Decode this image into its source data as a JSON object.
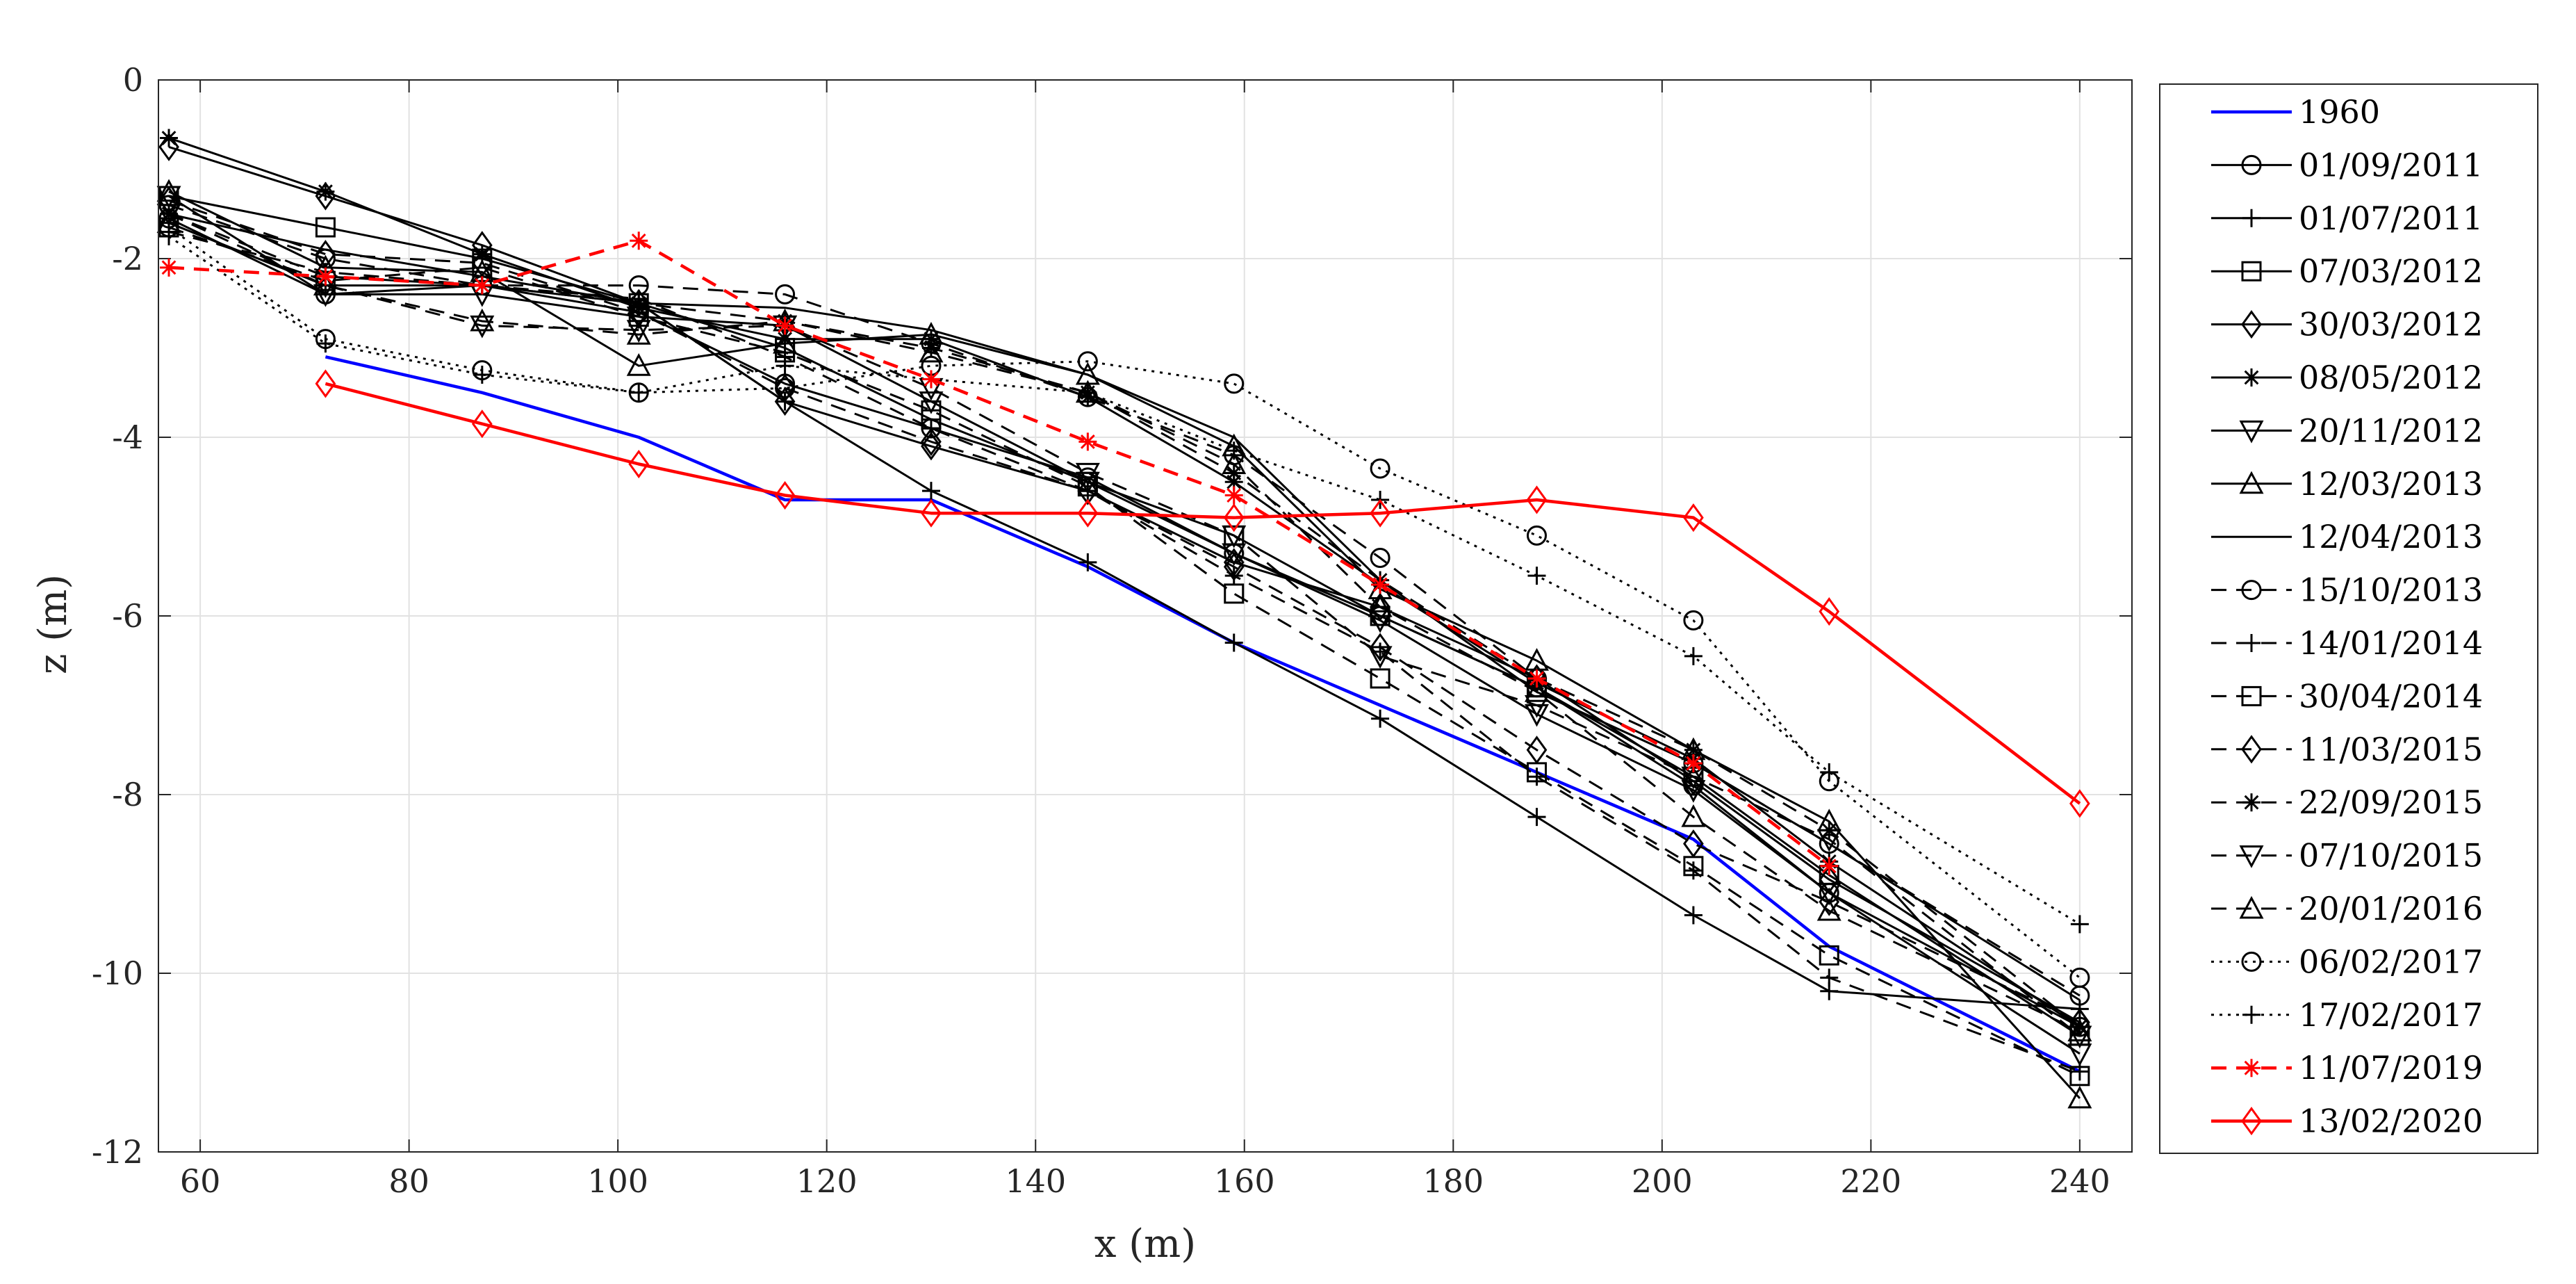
{
  "chart_data": {
    "type": "line",
    "xlabel": "x (m)",
    "ylabel": "z (m)",
    "xlim": [
      56,
      245
    ],
    "ylim": [
      -12,
      0
    ],
    "xticks": [
      60,
      80,
      100,
      120,
      140,
      160,
      180,
      200,
      220,
      240
    ],
    "yticks": [
      0,
      -2,
      -4,
      -6,
      -8,
      -10,
      -12
    ],
    "grid": true,
    "legend_position": "outside-right",
    "series": [
      {
        "name": "1960",
        "color": "#0000ff",
        "line": "solid",
        "marker": "none",
        "x": [
          72,
          87,
          102,
          116,
          130,
          145,
          159,
          173,
          188,
          203,
          216,
          240
        ],
        "y": [
          -3.1,
          -3.5,
          -4.0,
          -4.7,
          -4.7,
          -5.45,
          -6.3,
          -7.0,
          -7.75,
          -8.5,
          -9.7,
          -11.1
        ]
      },
      {
        "name": "01/09/2011",
        "color": "#000000",
        "line": "solid",
        "marker": "circle",
        "x": [
          57,
          72,
          87,
          102,
          116,
          130,
          145,
          159,
          173,
          188,
          203,
          216,
          240
        ],
        "y": [
          -1.55,
          -2.4,
          -2.3,
          -2.6,
          -3.4,
          -3.9,
          -4.45,
          -5.3,
          -6.0,
          -6.8,
          -7.9,
          -9.1,
          -10.6
        ]
      },
      {
        "name": "01/07/2011",
        "color": "#000000",
        "line": "solid",
        "marker": "plus",
        "x": [
          57,
          72,
          87,
          102,
          116,
          130,
          145,
          159,
          173,
          188,
          203,
          216,
          240
        ],
        "y": [
          -1.6,
          -2.3,
          -2.3,
          -2.5,
          -3.6,
          -4.6,
          -5.4,
          -6.3,
          -7.15,
          -8.25,
          -9.35,
          -10.2,
          -10.4
        ]
      },
      {
        "name": "07/03/2012",
        "color": "#000000",
        "line": "solid",
        "marker": "square",
        "x": [
          57,
          72,
          87,
          102,
          116,
          130,
          145,
          159,
          173,
          188,
          203,
          216,
          240
        ],
        "y": [
          -1.3,
          -1.65,
          -2.0,
          -2.5,
          -3.0,
          -3.8,
          -4.5,
          -5.1,
          -6.0,
          -6.8,
          -7.8,
          -8.9,
          -10.7
        ]
      },
      {
        "name": "30/03/2012",
        "color": "#000000",
        "line": "solid",
        "marker": "diamond",
        "x": [
          57,
          72,
          87,
          102,
          116,
          130,
          145,
          159,
          173,
          188,
          203,
          216,
          240
        ],
        "y": [
          -0.75,
          -1.3,
          -1.85,
          -2.5,
          -3.6,
          -4.1,
          -4.6,
          -5.4,
          -5.9,
          -6.7,
          -7.85,
          -8.95,
          -10.55
        ]
      },
      {
        "name": "08/05/2012",
        "color": "#000000",
        "line": "solid",
        "marker": "asterisk",
        "x": [
          57,
          72,
          87,
          102,
          116,
          130,
          145,
          159,
          173,
          188,
          203,
          216,
          240
        ],
        "y": [
          -0.65,
          -1.25,
          -1.95,
          -2.55,
          -2.9,
          -2.9,
          -3.55,
          -4.5,
          -5.65,
          -6.75,
          -7.6,
          -8.75,
          -10.6
        ]
      },
      {
        "name": "20/11/2012",
        "color": "#000000",
        "line": "solid",
        "marker": "triangle-down",
        "x": [
          57,
          72,
          87,
          102,
          116,
          130,
          145,
          159,
          173,
          188,
          203,
          216,
          240
        ],
        "y": [
          -1.3,
          -2.4,
          -2.4,
          -2.65,
          -2.75,
          -3.6,
          -4.5,
          -5.3,
          -6.05,
          -7.1,
          -7.95,
          -9.1,
          -10.9
        ]
      },
      {
        "name": "12/03/2013",
        "color": "#000000",
        "line": "solid",
        "marker": "triangle-up",
        "x": [
          57,
          72,
          87,
          102,
          116,
          130,
          145,
          159,
          173,
          188,
          203,
          216,
          240
        ],
        "y": [
          -1.25,
          -2.1,
          -2.15,
          -3.2,
          -2.95,
          -2.85,
          -3.3,
          -4.1,
          -5.7,
          -6.5,
          -7.5,
          -8.3,
          -11.4
        ]
      },
      {
        "name": "12/04/2013",
        "color": "#000000",
        "line": "solid",
        "marker": "none",
        "x": [
          57,
          72,
          87,
          102,
          116,
          130,
          145,
          159,
          173,
          188,
          203,
          216,
          240
        ],
        "y": [
          -1.5,
          -1.9,
          -2.2,
          -2.5,
          -2.55,
          -2.8,
          -3.3,
          -4.0,
          -5.6,
          -6.85,
          -7.65,
          -8.55,
          -10.3
        ]
      },
      {
        "name": "15/10/2013",
        "color": "#000000",
        "line": "dashed",
        "marker": "circle",
        "x": [
          57,
          72,
          87,
          102,
          116,
          130,
          145,
          159,
          173,
          188,
          203,
          216,
          240
        ],
        "y": [
          -1.4,
          -2.0,
          -2.3,
          -2.3,
          -2.4,
          -2.95,
          -3.55,
          -4.2,
          -5.35,
          -6.7,
          -7.65,
          -8.55,
          -10.25
        ]
      },
      {
        "name": "14/01/2014",
        "color": "#000000",
        "line": "dashed",
        "marker": "plus",
        "x": [
          57,
          72,
          87,
          102,
          116,
          130,
          145,
          159,
          173,
          188,
          203,
          216,
          240
        ],
        "y": [
          -1.7,
          -2.15,
          -2.3,
          -2.45,
          -3.1,
          -3.9,
          -4.6,
          -5.55,
          -6.4,
          -7.8,
          -8.85,
          -10.05,
          -11.1
        ]
      },
      {
        "name": "30/04/2014",
        "color": "#000000",
        "line": "dashed",
        "marker": "square",
        "x": [
          57,
          72,
          87,
          102,
          116,
          130,
          145,
          159,
          173,
          188,
          203,
          216,
          240
        ],
        "y": [
          -1.65,
          -2.25,
          -2.1,
          -2.65,
          -3.05,
          -3.7,
          -4.55,
          -5.75,
          -6.7,
          -7.75,
          -8.8,
          -9.8,
          -11.15
        ]
      },
      {
        "name": "11/03/2015",
        "color": "#000000",
        "line": "dashed",
        "marker": "diamond",
        "x": [
          57,
          72,
          87,
          102,
          116,
          130,
          145,
          159,
          173,
          188,
          203,
          216,
          240
        ],
        "y": [
          -1.35,
          -1.95,
          -2.05,
          -2.6,
          -3.45,
          -4.05,
          -4.6,
          -5.45,
          -6.35,
          -7.5,
          -8.55,
          -9.2,
          -10.55
        ]
      },
      {
        "name": "22/09/2015",
        "color": "#000000",
        "line": "dashed",
        "marker": "asterisk",
        "x": [
          57,
          72,
          87,
          102,
          116,
          130,
          145,
          159,
          173,
          188,
          203,
          216,
          240
        ],
        "y": [
          -1.5,
          -2.2,
          -2.3,
          -2.5,
          -2.7,
          -3.0,
          -3.5,
          -4.4,
          -5.6,
          -6.7,
          -7.5,
          -8.4,
          -10.6
        ]
      },
      {
        "name": "07/10/2015",
        "color": "#000000",
        "line": "dashed",
        "marker": "triangle-down",
        "x": [
          57,
          72,
          87,
          102,
          116,
          130,
          145,
          159,
          173,
          188,
          203,
          216,
          240
        ],
        "y": [
          -1.5,
          -2.3,
          -2.75,
          -2.8,
          -2.75,
          -3.45,
          -4.4,
          -5.1,
          -6.45,
          -7.0,
          -7.8,
          -8.5,
          -10.7
        ]
      },
      {
        "name": "20/01/2016",
        "color": "#000000",
        "line": "dashed",
        "marker": "triangle-up",
        "x": [
          57,
          72,
          87,
          102,
          116,
          130,
          145,
          159,
          173,
          188,
          203,
          216,
          240
        ],
        "y": [
          -1.6,
          -2.3,
          -2.7,
          -2.85,
          -2.7,
          -3.05,
          -3.5,
          -4.3,
          -5.9,
          -6.85,
          -8.25,
          -9.3,
          -10.65
        ]
      },
      {
        "name": "06/02/2017",
        "color": "#000000",
        "line": "dotted",
        "marker": "circle",
        "x": [
          57,
          72,
          87,
          102,
          116,
          130,
          145,
          159,
          173,
          188,
          203,
          216,
          240
        ],
        "y": [
          -1.65,
          -2.9,
          -3.25,
          -3.5,
          -3.45,
          -3.2,
          -3.15,
          -3.4,
          -4.35,
          -5.1,
          -6.05,
          -7.85,
          -10.05
        ]
      },
      {
        "name": "17/02/2017",
        "color": "#000000",
        "line": "dotted",
        "marker": "plus",
        "x": [
          57,
          72,
          87,
          102,
          116,
          130,
          145,
          159,
          173,
          188,
          203,
          216,
          240
        ],
        "y": [
          -1.75,
          -2.95,
          -3.3,
          -3.5,
          -3.2,
          -3.35,
          -3.5,
          -4.15,
          -4.7,
          -5.55,
          -6.45,
          -7.75,
          -9.45
        ]
      },
      {
        "name": "11/07/2019",
        "color": "#ff0000",
        "line": "dashed",
        "marker": "asterisk",
        "x": [
          57,
          72,
          87,
          102,
          116,
          130,
          145,
          159,
          173,
          188,
          203,
          216
        ],
        "y": [
          -2.1,
          -2.2,
          -2.3,
          -1.8,
          -2.75,
          -3.35,
          -4.05,
          -4.65,
          -5.65,
          -6.7,
          -7.65,
          -8.8
        ]
      },
      {
        "name": "13/02/2020",
        "color": "#ff0000",
        "line": "solid",
        "marker": "diamond",
        "x": [
          72,
          87,
          102,
          116,
          130,
          145,
          159,
          173,
          188,
          203,
          216,
          240
        ],
        "y": [
          -3.4,
          -3.85,
          -4.3,
          -4.65,
          -4.85,
          -4.85,
          -4.9,
          -4.85,
          -4.7,
          -4.9,
          -5.95,
          -8.1
        ]
      }
    ]
  }
}
